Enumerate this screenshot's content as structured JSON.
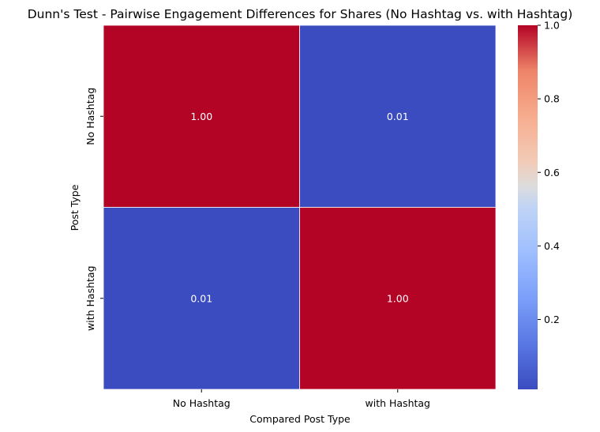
{
  "chart_data": {
    "type": "heatmap",
    "title": "Dunn's Test - Pairwise Engagement Differences for Shares (No Hashtag vs. with Hashtag)",
    "xlabel": "Compared Post Type",
    "ylabel": "Post Type",
    "x_categories": [
      "No Hashtag",
      "with Hashtag"
    ],
    "y_categories": [
      "No Hashtag",
      "with Hashtag"
    ],
    "values": [
      [
        1.0,
        0.01
      ],
      [
        0.01,
        1.0
      ]
    ],
    "cell_labels": [
      [
        "1.00",
        "0.01"
      ],
      [
        "0.01",
        "1.00"
      ]
    ],
    "colormap": "coolwarm",
    "colors": {
      "high": "#b40426",
      "low": "#3b4cc0"
    },
    "colorbar": {
      "range": [
        0.01,
        1.0
      ],
      "ticks": [
        "0.2",
        "0.4",
        "0.6",
        "0.8",
        "1.0"
      ],
      "tick_values": [
        0.2,
        0.4,
        0.6,
        0.8,
        1.0
      ]
    }
  }
}
